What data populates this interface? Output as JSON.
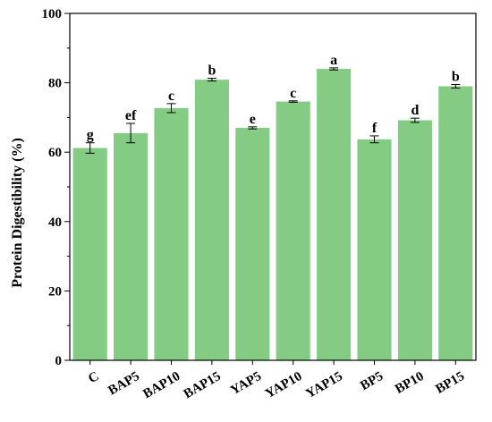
{
  "chart_data": {
    "type": "bar",
    "title": "",
    "xlabel": "",
    "ylabel": "Protein Digestibility (%)",
    "ylim": [
      0,
      100
    ],
    "yticks": [
      0,
      20,
      40,
      60,
      80,
      100
    ],
    "categories": [
      "C",
      "BAP5",
      "BAP10",
      "BAP15",
      "YAP5",
      "YAP10",
      "YAP15",
      "BP5",
      "BP10",
      "BP15"
    ],
    "values": [
      61.2,
      65.5,
      72.7,
      80.9,
      67.0,
      74.6,
      84.0,
      63.7,
      69.2,
      79.0
    ],
    "errors": [
      1.5,
      2.8,
      1.3,
      0.4,
      0.3,
      0.2,
      0.3,
      1.0,
      0.6,
      0.5
    ],
    "significance_letters": [
      "g",
      "ef",
      "c",
      "b",
      "e",
      "c",
      "a",
      "f",
      "d",
      "b"
    ],
    "bar_color": "#84cc84",
    "grid": false,
    "legend": "none"
  }
}
